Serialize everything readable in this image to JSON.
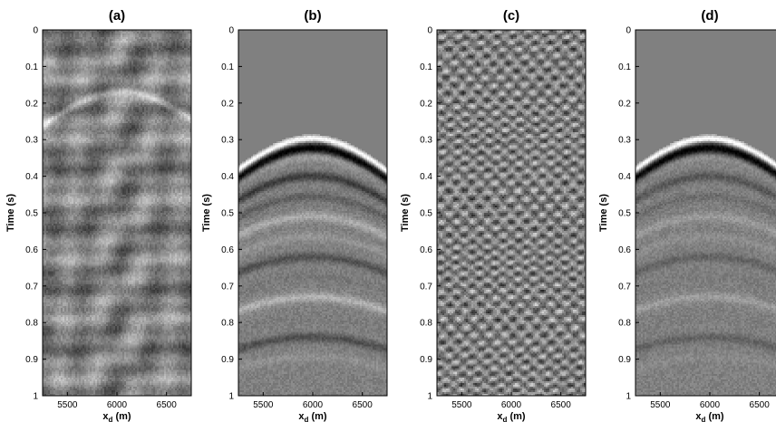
{
  "chart_data": [
    {
      "type": "heatmap",
      "panel_label": "(a)",
      "xlabel": "x",
      "xlabel_sub": "d",
      "xlabel_unit": " (m)",
      "ylabel": "Time (s)",
      "xlim": [
        5250,
        6750
      ],
      "ylim": [
        0,
        1
      ],
      "xticks": [
        5500,
        6000,
        6500
      ],
      "yticks": [
        0,
        0.1,
        0.2,
        0.3,
        0.4,
        0.5,
        0.6,
        0.7,
        0.8,
        0.9,
        1
      ],
      "colormap": "gray",
      "pattern": "dense criss-crossing seismic texture with dipping events",
      "apex_x": 6050,
      "apex_time": 0.17,
      "muted_above_time": null
    },
    {
      "type": "heatmap",
      "panel_label": "(b)",
      "xlabel": "x",
      "xlabel_sub": "d",
      "xlabel_unit": " (m)",
      "ylabel": "Time (s)",
      "xlim": [
        5250,
        6750
      ],
      "ylim": [
        0,
        1
      ],
      "xticks": [
        5500,
        6000,
        6500
      ],
      "yticks": [
        0,
        0.1,
        0.2,
        0.3,
        0.4,
        0.5,
        0.6,
        0.7,
        0.8,
        0.9,
        1
      ],
      "colormap": "gray",
      "pattern": "muted gather with strong first-arrival hyperbola and smooth curved events below",
      "apex_x": 5990,
      "apex_time": 0.29,
      "muted_above_time": 0.29
    },
    {
      "type": "heatmap",
      "panel_label": "(c)",
      "xlabel": "x",
      "xlabel_sub": "d",
      "xlabel_unit": " (m)",
      "ylabel": "Time (s)",
      "xlim": [
        5250,
        6750
      ],
      "ylim": [
        0,
        1
      ],
      "xticks": [
        5500,
        6000,
        6500
      ],
      "yticks": [
        0,
        0.1,
        0.2,
        0.3,
        0.4,
        0.5,
        0.6,
        0.7,
        0.8,
        0.9,
        1
      ],
      "colormap": "gray",
      "pattern": "fine high-frequency chevron texture with apex near 6000 m",
      "apex_x": 6000,
      "apex_time": 0.03,
      "muted_above_time": null
    },
    {
      "type": "heatmap",
      "panel_label": "(d)",
      "xlabel": "x",
      "xlabel_sub": "d",
      "xlabel_unit": " (m)",
      "ylabel": "Time (s)",
      "xlim": [
        5250,
        6750
      ],
      "ylim": [
        0,
        1
      ],
      "xticks": [
        5500,
        6000,
        6500
      ],
      "yticks": [
        0,
        0.1,
        0.2,
        0.3,
        0.4,
        0.5,
        0.6,
        0.7,
        0.8,
        0.9,
        1
      ],
      "colormap": "gray",
      "pattern": "muted gather with strong first-arrival hyperbola and weaker smooth events below",
      "apex_x": 5990,
      "apex_time": 0.29,
      "muted_above_time": 0.29
    }
  ],
  "colors": {
    "background": "#ffffff",
    "mute_gray": "#808080",
    "axis": "#000000"
  }
}
